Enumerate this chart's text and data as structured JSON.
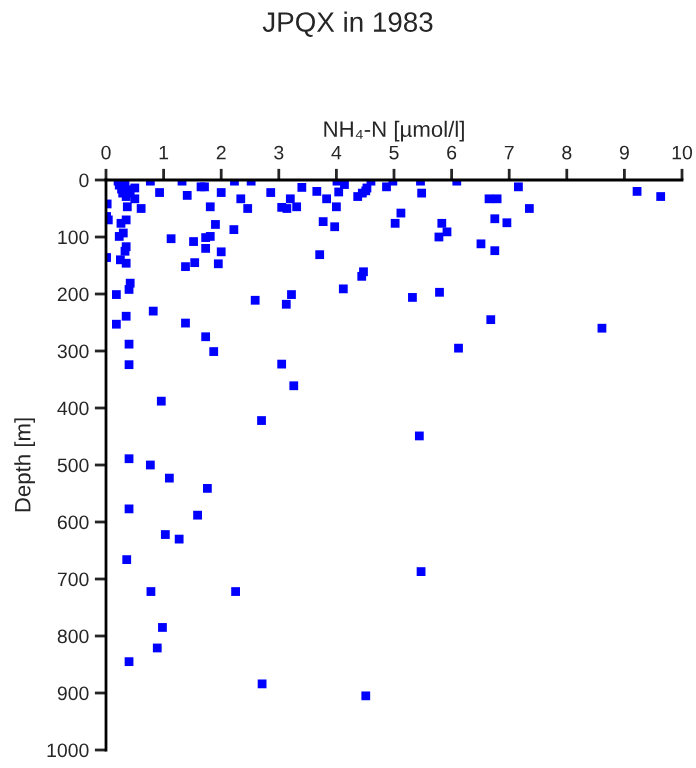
{
  "chart_data": {
    "type": "scatter",
    "title": "JPQX in 1983",
    "xlabel": "NH₄-N [µmol/l]",
    "ylabel": "Depth [m]",
    "xlim": [
      0,
      10
    ],
    "xticks": [
      0,
      1,
      2,
      3,
      4,
      5,
      6,
      7,
      8,
      9,
      10
    ],
    "ylim": [
      1000,
      0
    ],
    "yticks": [
      0,
      100,
      200,
      300,
      400,
      500,
      600,
      700,
      800,
      900,
      1000
    ],
    "grid": false,
    "marker": "square",
    "series": [
      {
        "color": "#0000ff",
        "x": [
          0.21,
          0.23,
          0.27,
          0.29,
          0.33,
          0.39,
          0.35,
          0.42,
          0.37,
          0.35,
          0.26,
          0.02,
          0.01,
          0.04,
          0.01,
          0.23,
          0.3,
          0.35,
          0.33,
          0.25,
          0.35,
          0.42,
          0.4,
          0.18,
          0.35,
          0.18,
          0.4,
          0.4,
          0.5,
          0.5,
          0.61,
          0.77,
          0.93,
          1.32,
          1.41,
          1.65,
          1.71,
          1.81,
          1.9,
          2.0,
          2.23,
          2.34,
          2.46,
          2.52,
          2.22,
          1.13,
          1.52,
          1.38,
          1.73,
          1.73,
          1.81,
          2.0,
          1.95,
          1.54,
          2.59,
          0.82,
          1.38,
          1.73,
          1.87,
          2.86,
          3.05,
          3.14,
          3.2,
          3.31,
          3.4,
          3.66,
          3.83,
          4.01,
          4.04,
          4.0,
          4.14,
          3.77,
          3.97,
          3.71,
          3.13,
          3.22,
          4.12,
          4.47,
          4.44,
          3.05,
          3.26,
          2.7,
          0.96,
          4.37,
          4.45,
          4.53,
          4.6,
          4.51,
          4.98,
          5.12,
          5.02,
          4.87,
          5.46,
          5.48,
          6.09,
          7.16,
          6.65,
          6.79,
          7.35,
          5.83,
          5.92,
          5.78,
          6.75,
          6.96,
          6.51,
          6.75,
          5.32,
          5.79,
          6.68,
          8.61,
          6.12,
          5.44,
          9.22,
          9.63,
          0.4,
          0.77,
          1.1,
          1.76,
          0.4,
          1.59,
          1.03,
          1.27,
          0.36,
          0.78,
          2.25,
          0.98,
          0.89,
          0.4,
          2.71,
          4.51,
          5.47
        ],
        "values": [
          2,
          9,
          16,
          23,
          8,
          17,
          29,
          23,
          47,
          70,
          76,
          42,
          64,
          70,
          136,
          99,
          93,
          117,
          125,
          140,
          146,
          181,
          192,
          201,
          239,
          253,
          288,
          324,
          14,
          33,
          50,
          2,
          22,
          2,
          27,
          12,
          12,
          47,
          78,
          22,
          2,
          33,
          50,
          2,
          87,
          103,
          108,
          152,
          101,
          120,
          99,
          126,
          147,
          145,
          211,
          230,
          251,
          275,
          301,
          22,
          48,
          50,
          33,
          47,
          13,
          20,
          33,
          2,
          21,
          47,
          8,
          73,
          82,
          131,
          218,
          201,
          191,
          161,
          169,
          323,
          361,
          422,
          388,
          29,
          23,
          14,
          2,
          19,
          2,
          58,
          76,
          12,
          2,
          23,
          2,
          12,
          33,
          33,
          50,
          76,
          91,
          100,
          68,
          75,
          112,
          124,
          206,
          197,
          245,
          260,
          295,
          449,
          20,
          29,
          489,
          500,
          523,
          541,
          577,
          588,
          622,
          630,
          666,
          722,
          722,
          785,
          821,
          845,
          884,
          905,
          687
        ]
      }
    ]
  }
}
